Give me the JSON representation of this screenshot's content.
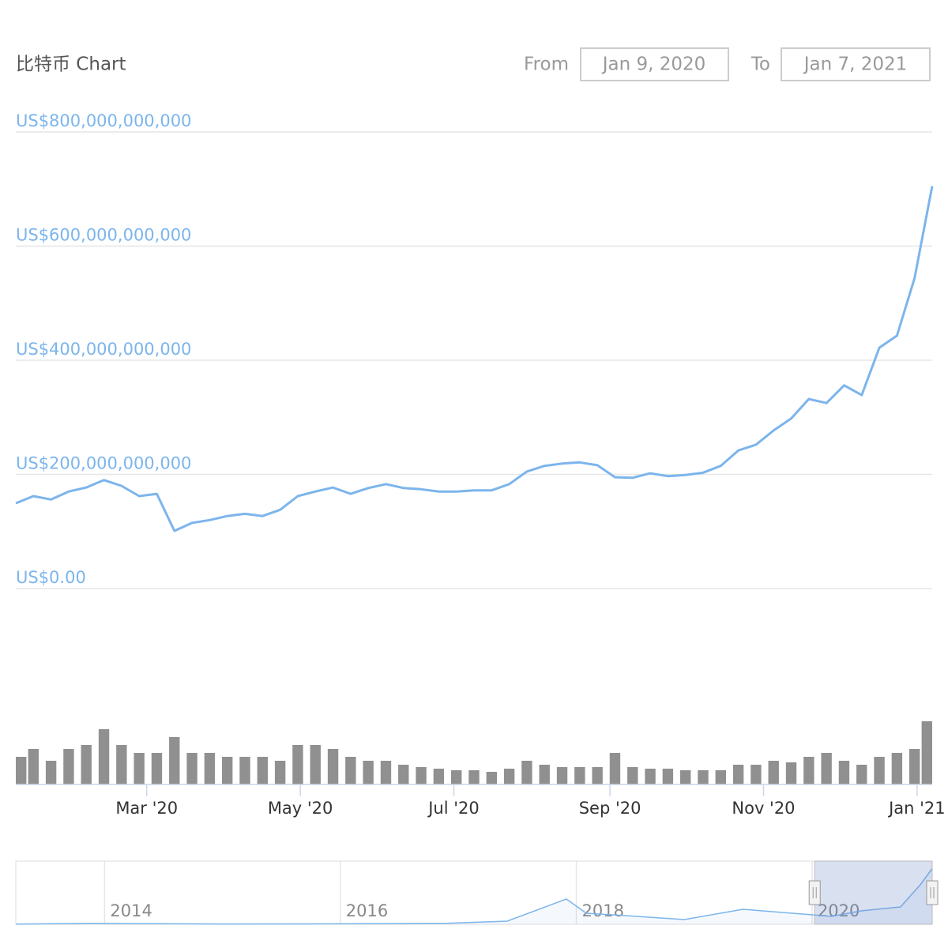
{
  "header": {
    "title": "比特币 Chart",
    "from_label": "From",
    "from": "Jan 9, 2020",
    "to_label": "To",
    "to": "Jan 7, 2021"
  },
  "chart_data": {
    "type": "line",
    "color": "#7cb5ec",
    "x": [
      "2020-01-09",
      "2020-01-16",
      "2020-01-23",
      "2020-01-30",
      "2020-02-06",
      "2020-02-13",
      "2020-02-20",
      "2020-02-27",
      "2020-03-05",
      "2020-03-12",
      "2020-03-19",
      "2020-03-26",
      "2020-04-02",
      "2020-04-09",
      "2020-04-16",
      "2020-04-23",
      "2020-04-30",
      "2020-05-07",
      "2020-05-14",
      "2020-05-21",
      "2020-05-28",
      "2020-06-04",
      "2020-06-11",
      "2020-06-18",
      "2020-06-25",
      "2020-07-02",
      "2020-07-09",
      "2020-07-16",
      "2020-07-23",
      "2020-07-30",
      "2020-08-06",
      "2020-08-13",
      "2020-08-20",
      "2020-08-27",
      "2020-09-03",
      "2020-09-10",
      "2020-09-17",
      "2020-09-24",
      "2020-10-01",
      "2020-10-08",
      "2020-10-15",
      "2020-10-22",
      "2020-10-29",
      "2020-11-05",
      "2020-11-12",
      "2020-11-19",
      "2020-11-26",
      "2020-12-03",
      "2020-12-10",
      "2020-12-17",
      "2020-12-24",
      "2020-12-31",
      "2021-01-07"
    ],
    "values": [
      149500000000,
      162000000000,
      156000000000,
      170000000000,
      177000000000,
      190000000000,
      180000000000,
      162000000000,
      166000000000,
      101000000000,
      115000000000,
      120000000000,
      127000000000,
      131000000000,
      127000000000,
      138000000000,
      162000000000,
      170000000000,
      177000000000,
      166000000000,
      176000000000,
      183000000000,
      176000000000,
      174000000000,
      170000000000,
      170000000000,
      172000000000,
      172000000000,
      183000000000,
      205000000000,
      215000000000,
      219000000000,
      221000000000,
      216000000000,
      195000000000,
      194000000000,
      202000000000,
      197000000000,
      199000000000,
      203000000000,
      215000000000,
      242000000000,
      252000000000,
      277000000000,
      298000000000,
      332000000000,
      325000000000,
      356000000000,
      339000000000,
      422000000000,
      443000000000,
      544000000000,
      705000000000
    ],
    "xlim": [
      "2020-01-09",
      "2021-01-07"
    ],
    "xticks": [
      {
        "value": "2020-03",
        "label": "Mar '20"
      },
      {
        "value": "2020-05",
        "label": "May '20"
      },
      {
        "value": "2020-07",
        "label": "Jul '20"
      },
      {
        "value": "2020-09",
        "label": "Sep '20"
      },
      {
        "value": "2020-11",
        "label": "Nov '20"
      },
      {
        "value": "2021-01",
        "label": "Jan '21"
      }
    ],
    "ylim": [
      0,
      800000000000
    ],
    "yticks": [
      {
        "value": 0,
        "label": "US$0.00"
      },
      {
        "value": 200000000000,
        "label": "US$200,000,000,000"
      },
      {
        "value": 400000000000,
        "label": "US$400,000,000,000"
      },
      {
        "value": 600000000000,
        "label": "US$600,000,000,000"
      },
      {
        "value": 800000000000,
        "label": "US$800,000,000,000"
      }
    ],
    "grid": true,
    "volume": {
      "color": "#909090",
      "ylim": [
        0,
        200000000000
      ],
      "values": [
        35000000000,
        45000000000,
        30000000000,
        45000000000,
        50000000000,
        70000000000,
        50000000000,
        40000000000,
        40000000000,
        60000000000,
        40000000000,
        40000000000,
        35000000000,
        35000000000,
        35000000000,
        30000000000,
        50000000000,
        50000000000,
        45000000000,
        35000000000,
        30000000000,
        30000000000,
        25000000000,
        22000000000,
        20000000000,
        18000000000,
        18000000000,
        16000000000,
        20000000000,
        30000000000,
        25000000000,
        22000000000,
        22000000000,
        22000000000,
        40000000000,
        22000000000,
        20000000000,
        20000000000,
        18000000000,
        18000000000,
        18000000000,
        25000000000,
        25000000000,
        30000000000,
        28000000000,
        35000000000,
        40000000000,
        30000000000,
        25000000000,
        35000000000,
        40000000000,
        45000000000,
        80000000000
      ]
    },
    "navigator": {
      "color": "#7cb5ec",
      "x": [
        "2013-04",
        "2013-12",
        "2014-06",
        "2015-01",
        "2016-01",
        "2016-12",
        "2017-06",
        "2017-12",
        "2018-02",
        "2018-06",
        "2018-12",
        "2019-06",
        "2019-12",
        "2020-03",
        "2020-06",
        "2020-10",
        "2020-12",
        "2021-01-07"
      ],
      "values": [
        1500000000,
        12000000000,
        8000000000,
        4000000000,
        6000000000,
        14000000000,
        40000000000,
        320000000000,
        140000000000,
        110000000000,
        60000000000,
        190000000000,
        130000000000,
        100000000000,
        170000000000,
        220000000000,
        500000000000,
        705000000000
      ],
      "xlim": [
        "2013-04",
        "2021-01-07"
      ],
      "ylim": [
        0,
        800000000000
      ],
      "xticks": [
        {
          "value": "2014",
          "label": "2014"
        },
        {
          "value": "2016",
          "label": "2016"
        },
        {
          "value": "2018",
          "label": "2018"
        },
        {
          "value": "2020",
          "label": "2020"
        }
      ]
    }
  }
}
